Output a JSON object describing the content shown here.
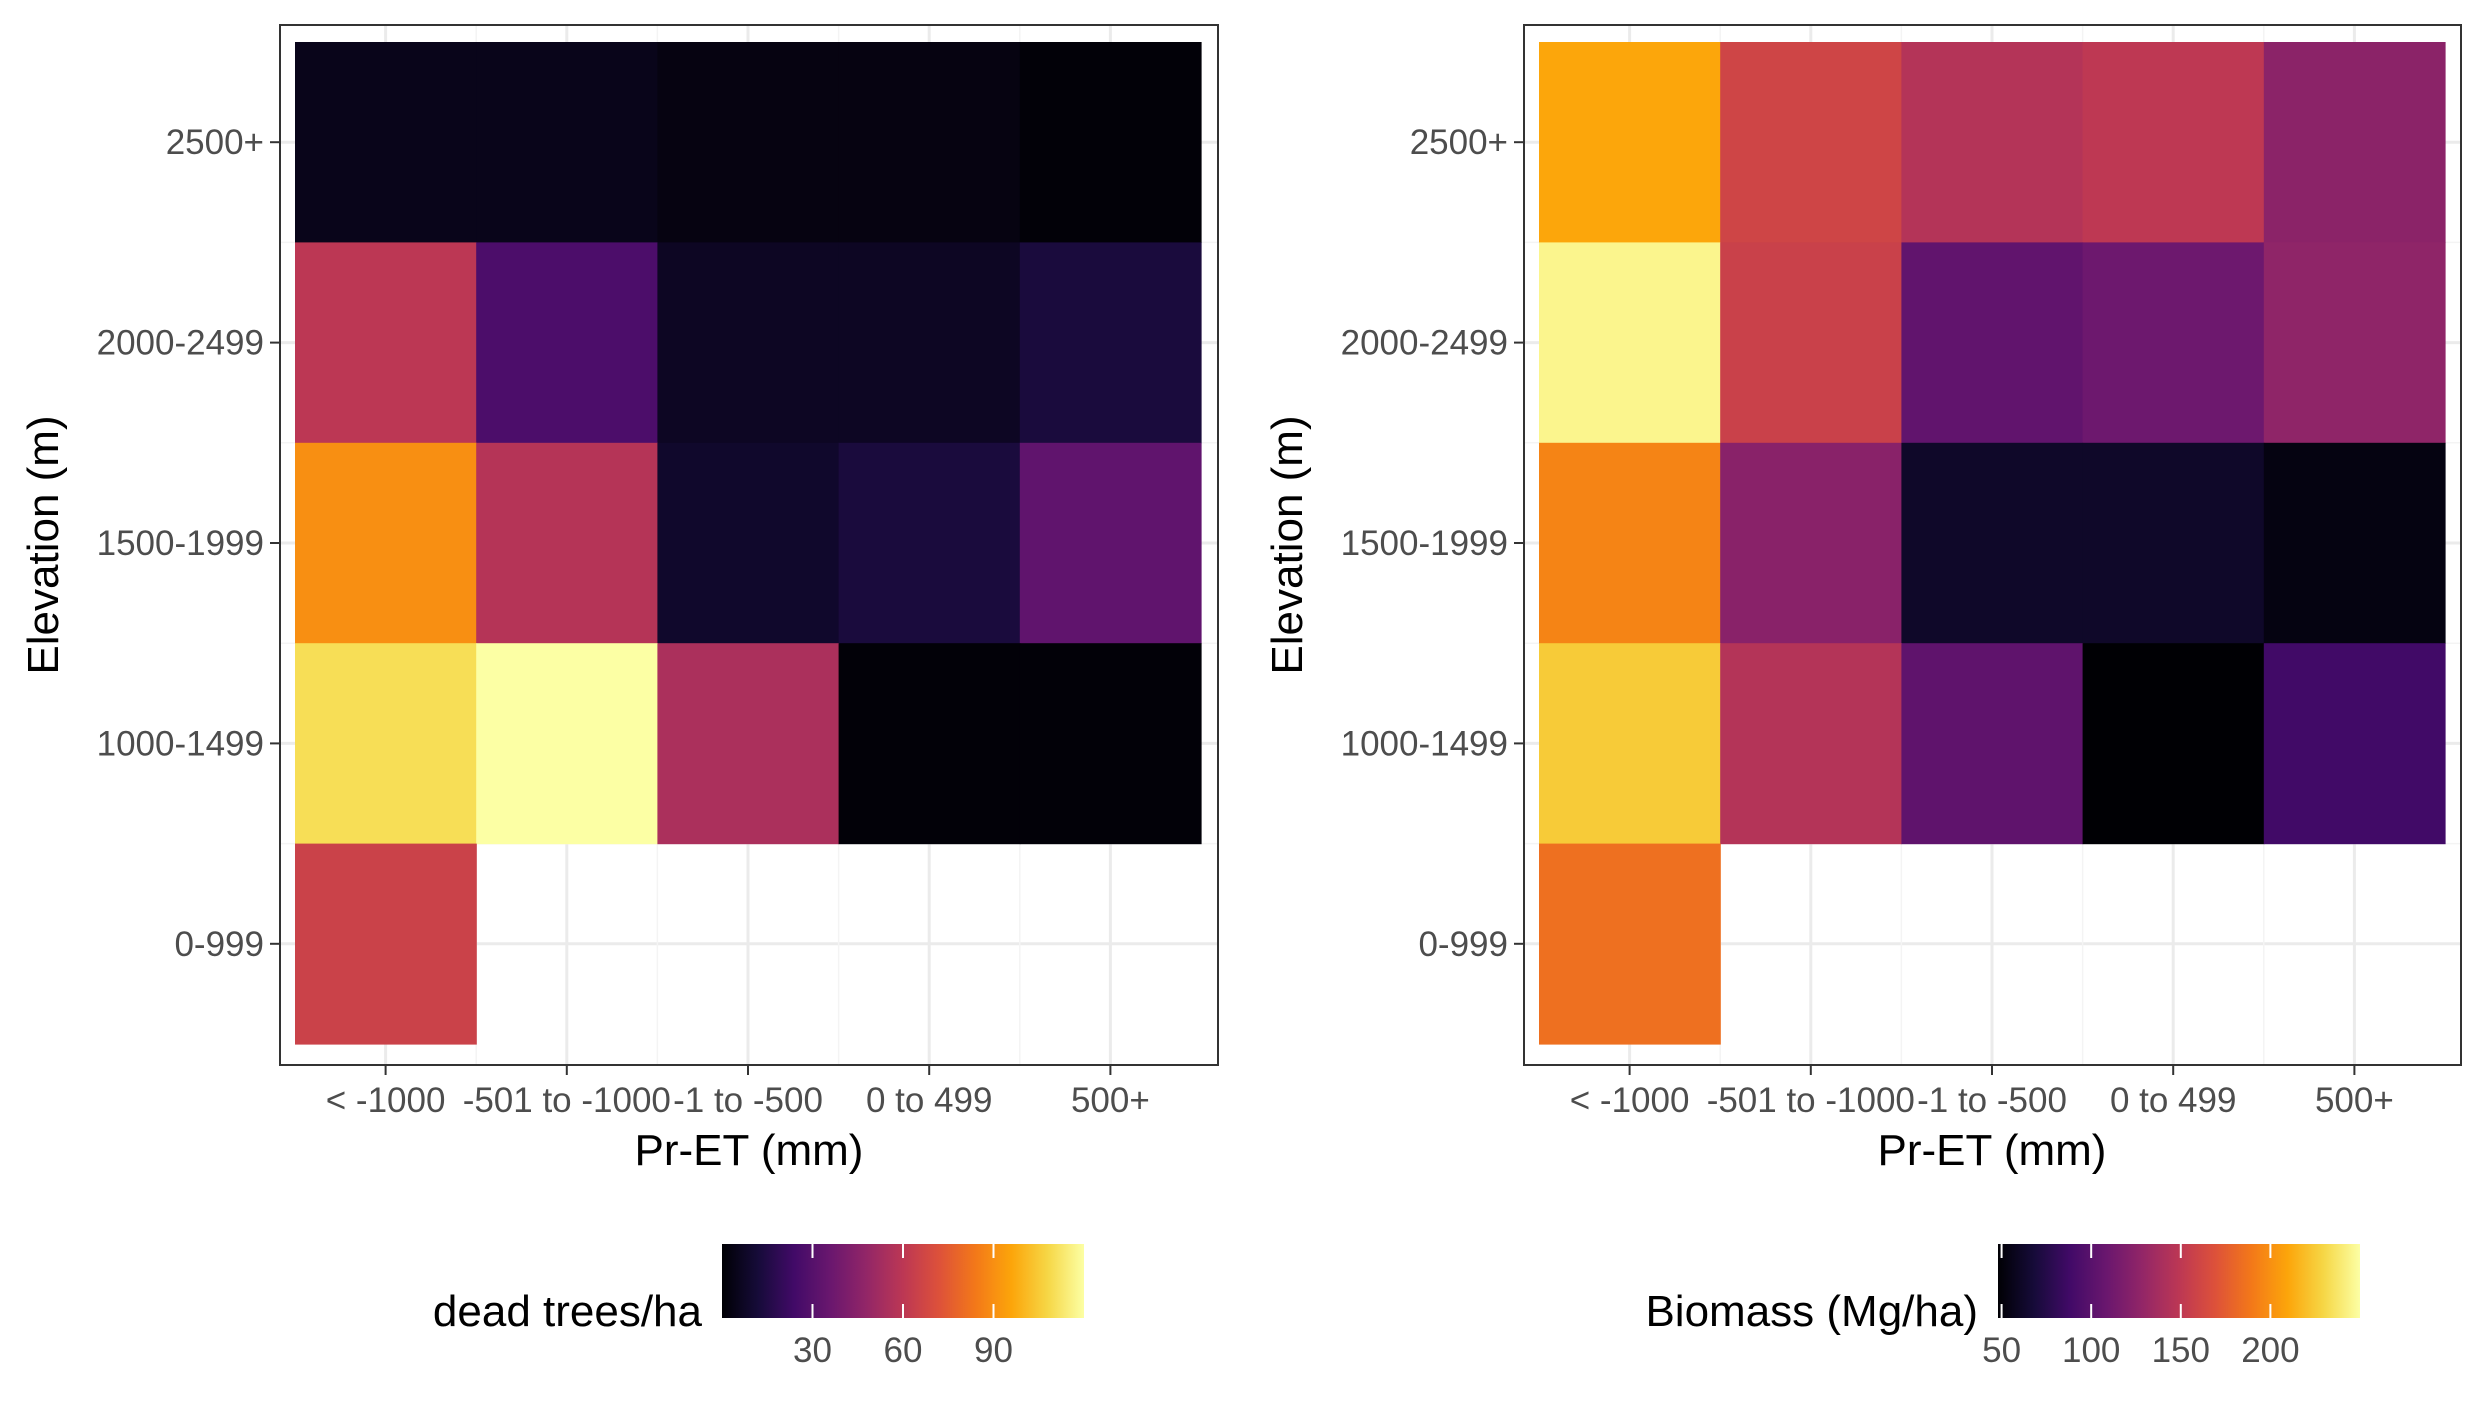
{
  "chart_data": [
    {
      "type": "heatmap",
      "xlabel": "Pr-ET (mm)",
      "ylabel": "Elevation (m)",
      "x_categories": [
        "< -1000",
        "-501 to -1000",
        "-1 to -500",
        "0 to 499",
        "500+"
      ],
      "y_categories": [
        "0-999",
        "1000-1499",
        "1500-1999",
        "2000-2499",
        "2500+"
      ],
      "cells": [
        {
          "x": "< -1000",
          "y": "2500+",
          "value": 5
        },
        {
          "x": "-501 to -1000",
          "y": "2500+",
          "value": 5
        },
        {
          "x": "-1 to -500",
          "y": "2500+",
          "value": 3
        },
        {
          "x": "0 to 499",
          "y": "2500+",
          "value": 3
        },
        {
          "x": "500+",
          "y": "2500+",
          "value": 1
        },
        {
          "x": "< -1000",
          "y": "2000-2499",
          "value": 60
        },
        {
          "x": "-501 to -1000",
          "y": "2000-2499",
          "value": 27
        },
        {
          "x": "-1 to -500",
          "y": "2000-2499",
          "value": 7
        },
        {
          "x": "0 to 499",
          "y": "2000-2499",
          "value": 7
        },
        {
          "x": "500+",
          "y": "2000-2499",
          "value": 13
        },
        {
          "x": "< -1000",
          "y": "1500-1999",
          "value": 90
        },
        {
          "x": "-501 to -1000",
          "y": "1500-1999",
          "value": 58
        },
        {
          "x": "-1 to -500",
          "y": "1500-1999",
          "value": 9
        },
        {
          "x": "0 to 499",
          "y": "1500-1999",
          "value": 13
        },
        {
          "x": "500+",
          "y": "1500-1999",
          "value": 33
        },
        {
          "x": "< -1000",
          "y": "1000-1499",
          "value": 110
        },
        {
          "x": "-501 to -1000",
          "y": "1000-1499",
          "value": 120
        },
        {
          "x": "-1 to -500",
          "y": "1000-1499",
          "value": 55
        },
        {
          "x": "0 to 499",
          "y": "1000-1499",
          "value": 1
        },
        {
          "x": "500+",
          "y": "1000-1499",
          "value": 1
        },
        {
          "x": "< -1000",
          "y": "0-999",
          "value": 65
        }
      ],
      "legend": {
        "title": "dead trees/ha",
        "position": "bottom",
        "min": 0,
        "max": 120,
        "breaks": [
          30,
          60,
          90
        ],
        "palette": "inferno"
      },
      "grid": true,
      "panel_background": "#ffffff"
    },
    {
      "type": "heatmap",
      "xlabel": "Pr-ET (mm)",
      "ylabel": "Elevation (m)",
      "x_categories": [
        "< -1000",
        "-501 to -1000",
        "-1 to -500",
        "0 to 499",
        "500+"
      ],
      "y_categories": [
        "0-999",
        "1000-1499",
        "1500-1999",
        "2000-2499",
        "2500+"
      ],
      "cells": [
        {
          "x": "< -1000",
          "y": "2500+",
          "value": 210
        },
        {
          "x": "-501 to -1000",
          "y": "2500+",
          "value": 160
        },
        {
          "x": "-1 to -500",
          "y": "2500+",
          "value": 145
        },
        {
          "x": "0 to 499",
          "y": "2500+",
          "value": 150
        },
        {
          "x": "500+",
          "y": "2500+",
          "value": 125
        },
        {
          "x": "< -1000",
          "y": "2000-2499",
          "value": 245
        },
        {
          "x": "-501 to -1000",
          "y": "2000-2499",
          "value": 157
        },
        {
          "x": "-1 to -500",
          "y": "2000-2499",
          "value": 104
        },
        {
          "x": "0 to 499",
          "y": "2000-2499",
          "value": 110
        },
        {
          "x": "500+",
          "y": "2000-2499",
          "value": 127
        },
        {
          "x": "< -1000",
          "y": "1500-1999",
          "value": 195
        },
        {
          "x": "-501 to -1000",
          "y": "1500-1999",
          "value": 124
        },
        {
          "x": "-1 to -500",
          "y": "1500-1999",
          "value": 62
        },
        {
          "x": "0 to 499",
          "y": "1500-1999",
          "value": 62
        },
        {
          "x": "500+",
          "y": "1500-1999",
          "value": 53
        },
        {
          "x": "< -1000",
          "y": "1000-1499",
          "value": 225
        },
        {
          "x": "-501 to -1000",
          "y": "1000-1499",
          "value": 145
        },
        {
          "x": "-1 to -500",
          "y": "1000-1499",
          "value": 103
        },
        {
          "x": "0 to 499",
          "y": "1000-1499",
          "value": 48
        },
        {
          "x": "500+",
          "y": "1000-1499",
          "value": 88
        },
        {
          "x": "< -1000",
          "y": "0-999",
          "value": 185
        }
      ],
      "legend": {
        "title": "Biomass (Mg/ha)",
        "position": "bottom",
        "min": 48,
        "max": 250,
        "breaks": [
          50,
          100,
          150,
          200
        ],
        "palette": "inferno"
      },
      "grid": true,
      "panel_background": "#ffffff"
    }
  ]
}
